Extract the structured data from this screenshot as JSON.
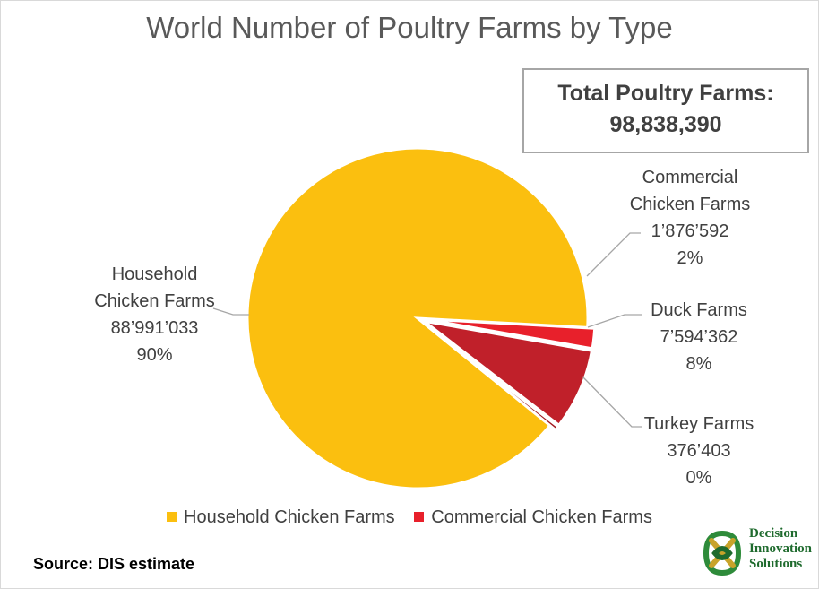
{
  "chart_data": {
    "type": "pie",
    "title": "World Number of Poultry Farms by Type",
    "total_box": {
      "line1": "Total Poultry Farms:",
      "line2": "98,838,390"
    },
    "slices": [
      {
        "name": "Household Chicken Farms",
        "value": 88991033,
        "value_label": "88’991’033",
        "percent_label": "90%",
        "label_line1": "Household",
        "label_line2": "Chicken Farms",
        "color": "#fbbf0f"
      },
      {
        "name": "Commercial Chicken Farms",
        "value": 1876592,
        "value_label": "1’876’592",
        "percent_label": "2%",
        "label_line1": "Commercial",
        "label_line2": "Chicken Farms",
        "color": "#e8202b"
      },
      {
        "name": "Duck Farms",
        "value": 7594362,
        "value_label": "7’594’362",
        "percent_label": "8%",
        "label_line1": "Duck Farms",
        "color": "#c0202a"
      },
      {
        "name": "Turkey Farms",
        "value": 376403,
        "value_label": "376’403",
        "percent_label": "0%",
        "label_line1": "Turkey Farms",
        "color": "#a01820"
      }
    ],
    "legend": [
      {
        "label": "Household Chicken Farms",
        "color": "#fbbf0f"
      },
      {
        "label": "Commercial Chicken Farms",
        "color": "#e8202b"
      }
    ],
    "legend_placement": "bottom"
  },
  "source": "Source: DIS estimate",
  "logo": {
    "line1": "Decision",
    "line2": "Innovation",
    "line3": "Solutions",
    "color": "#1f6b2e",
    "icon": "dis-knot-logo-icon"
  }
}
